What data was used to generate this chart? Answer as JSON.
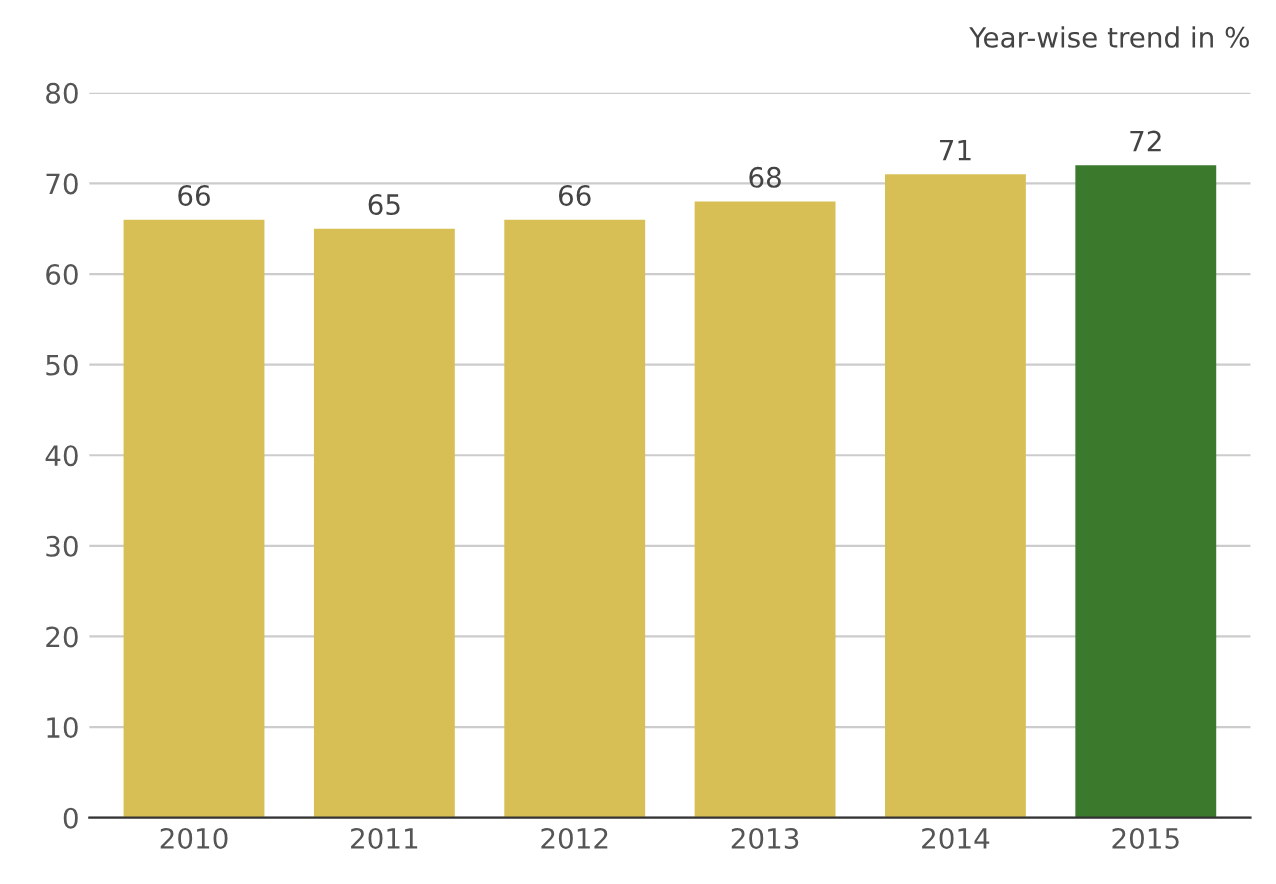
{
  "chart_data": {
    "type": "bar",
    "subtitle": "Year-wise trend in %",
    "categories": [
      "2010",
      "2011",
      "2012",
      "2013",
      "2014",
      "2015"
    ],
    "values": [
      66,
      65,
      66,
      68,
      71,
      72
    ],
    "colors": [
      "#d8bf55",
      "#d8bf55",
      "#d8bf55",
      "#d8bf55",
      "#d8bf55",
      "#3b7a2c"
    ],
    "ylim": [
      0,
      80
    ],
    "yticks": [
      0,
      10,
      20,
      30,
      40,
      50,
      60,
      70,
      80
    ],
    "grid": "y",
    "data_labels": true
  }
}
